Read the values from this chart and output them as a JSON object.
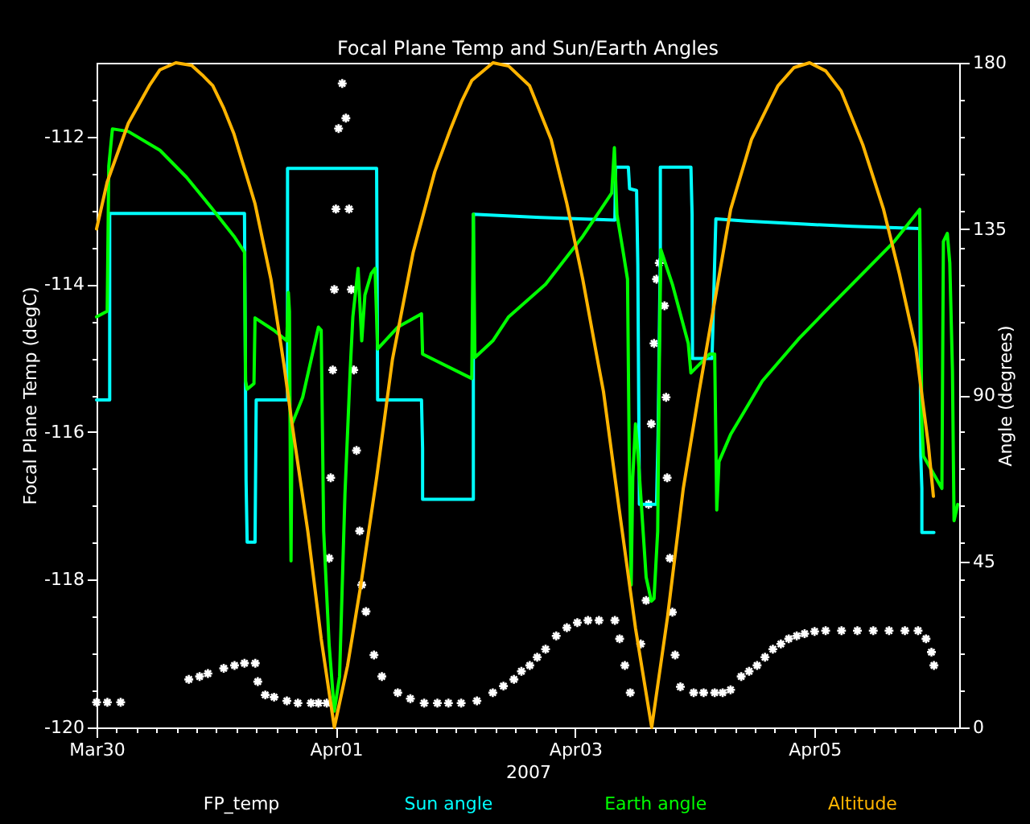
{
  "chart_data": {
    "type": "line",
    "title": "Focal Plane Temp and Sun/Earth Angles",
    "xlabel": "2007",
    "ylabel": "Focal Plane Temp (degC)",
    "y2label": "Angle (degrees)",
    "legend": "bottom",
    "xlim": [
      "2007-03-30T00:00",
      "2007-04-06T05:00"
    ],
    "xticks": [
      {
        "value": "2007-03-30",
        "label": "Mar30"
      },
      {
        "value": "2007-03-30T04:00",
        "label": null
      },
      {
        "value": "2007-03-30T08:00",
        "label": null
      },
      {
        "value": "2007-03-30T12:00",
        "label": null
      },
      {
        "value": "2007-03-30T16:00",
        "label": null
      },
      {
        "value": "2007-03-30T20:00",
        "label": null
      },
      {
        "value": "2007-03-31T00:00",
        "label": null
      },
      {
        "value": "2007-03-31T04:00",
        "label": null
      },
      {
        "value": "2007-03-31T08:00",
        "label": null
      },
      {
        "value": "2007-03-31T12:00",
        "label": null
      },
      {
        "value": "2007-03-31T16:00",
        "label": null
      },
      {
        "value": "2007-03-31T20:00",
        "label": null
      },
      {
        "value": "2007-04-01",
        "label": "Apr01"
      },
      {
        "value": "2007-04-01T04:00",
        "label": null
      },
      {
        "value": "2007-04-01T08:00",
        "label": null
      },
      {
        "value": "2007-04-01T12:00",
        "label": null
      },
      {
        "value": "2007-04-01T16:00",
        "label": null
      },
      {
        "value": "2007-04-01T20:00",
        "label": null
      },
      {
        "value": "2007-04-02T00:00",
        "label": null
      },
      {
        "value": "2007-04-02T04:00",
        "label": null
      },
      {
        "value": "2007-04-02T08:00",
        "label": null
      },
      {
        "value": "2007-04-02T12:00",
        "label": null
      },
      {
        "value": "2007-04-02T16:00",
        "label": null
      },
      {
        "value": "2007-04-02T20:00",
        "label": null
      },
      {
        "value": "2007-04-03",
        "label": "Apr03"
      },
      {
        "value": "2007-04-03T04:00",
        "label": null
      },
      {
        "value": "2007-04-03T08:00",
        "label": null
      },
      {
        "value": "2007-04-03T12:00",
        "label": null
      },
      {
        "value": "2007-04-03T16:00",
        "label": null
      },
      {
        "value": "2007-04-03T20:00",
        "label": null
      },
      {
        "value": "2007-04-04T00:00",
        "label": null
      },
      {
        "value": "2007-04-04T04:00",
        "label": null
      },
      {
        "value": "2007-04-04T08:00",
        "label": null
      },
      {
        "value": "2007-04-04T12:00",
        "label": null
      },
      {
        "value": "2007-04-04T16:00",
        "label": null
      },
      {
        "value": "2007-04-04T20:00",
        "label": null
      },
      {
        "value": "2007-04-05",
        "label": "Apr05"
      },
      {
        "value": "2007-04-05T04:00",
        "label": null
      },
      {
        "value": "2007-04-05T08:00",
        "label": null
      },
      {
        "value": "2007-04-05T12:00",
        "label": null
      },
      {
        "value": "2007-04-05T16:00",
        "label": null
      },
      {
        "value": "2007-04-05T20:00",
        "label": null
      },
      {
        "value": "2007-04-06T00:00",
        "label": null
      },
      {
        "value": "2007-04-06T04:00",
        "label": null
      }
    ],
    "ylim": [
      -120,
      -111
    ],
    "yticks": [
      -120,
      {
        "value": -119.5,
        "label": null
      },
      {
        "value": -119,
        "label": null
      },
      {
        "value": -118.5,
        "label": null
      },
      -118,
      {
        "value": -117.5,
        "label": null
      },
      {
        "value": -117,
        "label": null
      },
      {
        "value": -116.5,
        "label": null
      },
      -116,
      {
        "value": -115.5,
        "label": null
      },
      {
        "value": -115,
        "label": null
      },
      {
        "value": -114.5,
        "label": null
      },
      -114,
      {
        "value": -113.5,
        "label": null
      },
      {
        "value": -113,
        "label": null
      },
      {
        "value": -112.5,
        "label": null
      },
      -112,
      {
        "value": -111.5,
        "label": null
      }
    ],
    "y2lim": [
      0,
      180
    ],
    "y2ticks": [
      0,
      {
        "value": 10,
        "label": null
      },
      {
        "value": 20,
        "label": null
      },
      {
        "value": 30,
        "label": null
      },
      {
        "value": 40,
        "label": null
      },
      45,
      {
        "value": 50,
        "label": null
      },
      {
        "value": 60,
        "label": null
      },
      {
        "value": 70,
        "label": null
      },
      {
        "value": 80,
        "label": null
      },
      90,
      {
        "value": 100,
        "label": null
      },
      {
        "value": 110,
        "label": null
      },
      {
        "value": 120,
        "label": null
      },
      {
        "value": 130,
        "label": null
      },
      135,
      {
        "value": 140,
        "label": null
      },
      {
        "value": 150,
        "label": null
      },
      {
        "value": 160,
        "label": null
      },
      {
        "value": 170,
        "label": null
      },
      180
    ],
    "series": [
      {
        "name": "FP_temp",
        "type": "scatter",
        "marker": "cross",
        "color": "#ffffff",
        "x": [
          "2007-03-30T00:00",
          "2007-03-30T02:10",
          "2007-03-30T04:50",
          "2007-03-30T18:30",
          "2007-03-30T20:40",
          "2007-03-30T22:20",
          "2007-03-31T01:30",
          "2007-03-31T03:40",
          "2007-03-31T05:40",
          "2007-03-31T07:50",
          "2007-03-31T08:20",
          "2007-03-31T09:50",
          "2007-03-31T11:36",
          "2007-03-31T14:10",
          "2007-03-31T16:23",
          "2007-03-31T19:00",
          "2007-03-31T20:30",
          "2007-03-31T22:10",
          "2007-03-31T22:38",
          "2007-03-31T22:57",
          "2007-03-31T23:22",
          "2007-03-31T23:41",
          "2007-04-01T00:00",
          "2007-04-01T00:32",
          "2007-04-01T01:16",
          "2007-04-01T02:00",
          "2007-04-01T02:38",
          "2007-04-01T03:05",
          "2007-04-01T03:35",
          "2007-04-01T04:08",
          "2007-04-01T04:46",
          "2007-04-01T05:11",
          "2007-04-01T06:02",
          "2007-04-01T07:38",
          "2007-04-01T09:13",
          "2007-04-01T12:24",
          "2007-04-01T14:56",
          "2007-04-01T17:42",
          "2007-04-01T20:21",
          "2007-04-01T22:34",
          "2007-04-02T01:07",
          "2007-04-02T04:17",
          "2007-04-02T07:28",
          "2007-04-02T09:36",
          "2007-04-02T11:42",
          "2007-04-02T13:12",
          "2007-04-02T14:53",
          "2007-04-02T16:22",
          "2007-04-02T18:03",
          "2007-04-02T20:11",
          "2007-04-02T22:19",
          "2007-04-03T00:25",
          "2007-04-03T02:33",
          "2007-04-03T04:46",
          "2007-04-03T07:57",
          "2007-04-03T08:54",
          "2007-04-03T09:57",
          "2007-04-03T11:02",
          "2007-04-03T13:08",
          "2007-04-03T14:13",
          "2007-04-03T14:43",
          "2007-04-03T15:15",
          "2007-04-03T15:48",
          "2007-04-03T16:18",
          "2007-04-03T16:51",
          "2007-04-03T17:54",
          "2007-04-03T18:13",
          "2007-04-03T18:26",
          "2007-04-03T18:59",
          "2007-04-03T19:29",
          "2007-04-03T20:02",
          "2007-04-03T21:05",
          "2007-04-03T23:45",
          "2007-04-04T01:45",
          "2007-04-04T03:58",
          "2007-04-04T05:34",
          "2007-04-04T07:09",
          "2007-04-04T09:17",
          "2007-04-04T10:52",
          "2007-04-04T12:28",
          "2007-04-04T14:03",
          "2007-04-04T15:38",
          "2007-04-04T17:14",
          "2007-04-04T18:49",
          "2007-04-04T20:25",
          "2007-04-04T22:00",
          "2007-04-05T00:00",
          "2007-04-05T02:13",
          "2007-04-05T05:24",
          "2007-04-05T08:35",
          "2007-04-05T11:46",
          "2007-04-05T14:56",
          "2007-04-05T18:07",
          "2007-04-05T20:45",
          "2007-04-05T22:21",
          "2007-04-05T23:26",
          "2007-04-05T23:56"
        ],
        "values": [
          -119.66,
          -119.66,
          -119.66,
          -119.35,
          -119.31,
          -119.27,
          -119.2,
          -119.16,
          -119.13,
          -119.13,
          -119.38,
          -119.56,
          -119.59,
          -119.64,
          -119.67,
          -119.67,
          -119.67,
          -119.67,
          -117.71,
          -116.62,
          -115.16,
          -114.07,
          -112.98,
          -111.89,
          -111.28,
          -111.75,
          -112.98,
          -114.07,
          -115.16,
          -116.25,
          -117.34,
          -118.07,
          -118.43,
          -119.02,
          -119.31,
          -119.53,
          -119.61,
          -119.67,
          -119.67,
          -119.67,
          -119.67,
          -119.64,
          -119.53,
          -119.44,
          -119.35,
          -119.24,
          -119.16,
          -119.05,
          -118.94,
          -118.76,
          -118.65,
          -118.58,
          -118.55,
          -118.55,
          -118.55,
          -118.8,
          -119.16,
          -119.53,
          -118.87,
          -118.28,
          -116.98,
          -115.89,
          -114.8,
          -113.93,
          -113.71,
          -114.29,
          -115.53,
          -116.62,
          -117.71,
          -118.44,
          -119.02,
          -119.45,
          -119.53,
          -119.53,
          -119.53,
          -119.53,
          -119.49,
          -119.31,
          -119.24,
          -119.16,
          -119.05,
          -118.94,
          -118.87,
          -118.8,
          -118.76,
          -118.73,
          -118.7,
          -118.69,
          -118.69,
          -118.69,
          -118.69,
          -118.69,
          -118.69,
          -118.69,
          -118.8,
          -118.98,
          -119.16
        ]
      },
      {
        "name": "Sun angle",
        "axis": "y2",
        "color": "#00ffff",
        "x": [
          "2007-03-30T00:00",
          "2007-03-30T02:38",
          "2007-03-30T02:38",
          "2007-03-31T05:40",
          "2007-03-31T05:59",
          "2007-03-31T06:12",
          "2007-03-31T07:47",
          "2007-03-31T08:01",
          "2007-03-31T14:18",
          "2007-03-31T14:18",
          "2007-04-01T08:10",
          "2007-04-01T08:22",
          "2007-04-01T17:10",
          "2007-04-01T17:23",
          "2007-04-01T17:23",
          "2007-04-02T03:34",
          "2007-04-02T03:34",
          "2007-04-02T17:00",
          "2007-04-03T07:57",
          "2007-04-03T08:06",
          "2007-04-03T10:39",
          "2007-04-03T10:54",
          "2007-04-03T12:18",
          "2007-04-03T12:33",
          "2007-04-03T12:52",
          "2007-04-03T16:18",
          "2007-04-03T16:37",
          "2007-04-03T17:04",
          "2007-04-03T17:04",
          "2007-04-03T23:12",
          "2007-04-03T23:26",
          "2007-04-03T23:31",
          "2007-04-04T03:26",
          "2007-04-04T03:45",
          "2007-04-04T04:12",
          "2007-04-04T10:20",
          "2007-04-04T22:00",
          "2007-04-05T07:32",
          "2007-04-05T21:05",
          "2007-04-05T21:18",
          "2007-04-05T21:31",
          "2007-04-05T21:31",
          "2007-04-05T23:56"
        ],
        "values": [
          88.7,
          88.7,
          139.2,
          139.2,
          66.9,
          50.2,
          50.2,
          88.7,
          88.7,
          151.4,
          151.4,
          88.7,
          88.7,
          75.6,
          61.8,
          61.8,
          139.0,
          138.1,
          137.4,
          151.7,
          151.7,
          145.9,
          145.4,
          125.1,
          60.4,
          60.4,
          79.3,
          128.7,
          151.7,
          151.7,
          138.9,
          99.9,
          99.9,
          115.6,
          137.7,
          137.1,
          136.3,
          135.7,
          135.1,
          73.5,
          64.7,
          52.8,
          52.8
        ]
      },
      {
        "name": "Earth angle",
        "axis": "y2",
        "color": "#00ff00",
        "x": [
          "2007-03-30T00:00",
          "2007-03-30T02:08",
          "2007-03-30T02:27",
          "2007-03-30T03:11",
          "2007-03-30T06:22",
          "2007-03-30T12:43",
          "2007-03-30T18:02",
          "2007-03-30T23:18",
          "2007-03-31T03:34",
          "2007-03-31T05:40",
          "2007-03-31T05:53",
          "2007-03-31T06:12",
          "2007-03-31T07:34",
          "2007-03-31T07:47",
          "2007-03-31T11:31",
          "2007-03-31T14:09",
          "2007-03-31T14:28",
          "2007-03-31T14:41",
          "2007-03-31T14:53",
          "2007-03-31T15:00",
          "2007-03-31T15:12",
          "2007-03-31T17:20",
          "2007-03-31T20:30",
          "2007-03-31T21:03",
          "2007-03-31T21:33",
          "2007-03-31T22:38",
          "2007-03-31T23:41",
          "2007-04-01T00:44",
          "2007-04-01T01:49",
          "2007-04-01T02:52",
          "2007-04-01T03:24",
          "2007-04-01T04:27",
          "2007-04-01T05:11",
          "2007-04-01T05:49",
          "2007-04-01T07:05",
          "2007-04-01T07:51",
          "2007-04-01T08:22",
          "2007-04-01T12:24",
          "2007-04-01T17:10",
          "2007-04-01T17:23",
          "2007-04-02T03:15",
          "2007-04-02T03:34",
          "2007-04-02T03:53",
          "2007-04-02T07:28",
          "2007-04-02T10:39",
          "2007-04-02T18:03",
          "2007-04-03T01:30",
          "2007-04-03T07:19",
          "2007-04-03T07:51",
          "2007-04-03T08:22",
          "2007-04-03T09:32",
          "2007-04-03T10:29",
          "2007-04-03T10:49",
          "2007-04-03T11:13",
          "2007-04-03T11:32",
          "2007-04-03T12:05",
          "2007-04-03T12:37",
          "2007-04-03T14:13",
          "2007-04-03T15:16",
          "2007-04-03T15:48",
          "2007-04-03T16:32",
          "2007-04-03T16:51",
          "2007-04-03T17:10",
          "2007-04-03T19:29",
          "2007-04-03T22:40",
          "2007-04-03T23:12",
          "2007-04-04T02:55",
          "2007-04-04T03:58",
          "2007-04-04T04:23",
          "2007-04-04T04:50",
          "2007-04-04T07:09",
          "2007-04-04T13:31",
          "2007-04-04T20:55",
          "2007-04-05T03:16",
          "2007-04-05T09:38",
          "2007-04-05T15:59",
          "2007-04-05T21:05",
          "2007-04-05T21:31",
          "2007-04-05T21:50",
          "2007-04-06T01:32",
          "2007-04-06T01:50",
          "2007-04-06T02:37",
          "2007-04-06T03:07",
          "2007-04-06T03:39",
          "2007-04-06T03:58",
          "2007-04-06T04:42"
        ],
        "values": [
          111.2,
          112.7,
          152.0,
          162.1,
          161.4,
          156.3,
          149.0,
          140.3,
          133.0,
          128.7,
          93.8,
          91.6,
          93.1,
          110.9,
          107.6,
          104.7,
          117.8,
          112.7,
          64.7,
          45.1,
          82.2,
          89.4,
          108.4,
          107.6,
          53.1,
          22.6,
          4.4,
          13.8,
          63.2,
          96.7,
          111.2,
          124.3,
          104.7,
          117.1,
          122.9,
          124.3,
          102.5,
          108.4,
          112.0,
          101.1,
          94.5,
          139.0,
          100.2,
          104.7,
          111.2,
          120.0,
          133.0,
          144.7,
          157.0,
          138.9,
          129.4,
          121.4,
          75.6,
          38.6,
          67.6,
          82.2,
          73.5,
          40.7,
          34.2,
          34.9,
          53.1,
          96.7,
          129.4,
          120.0,
          104.0,
          96.0,
          101.1,
          101.1,
          58.9,
          72.0,
          79.3,
          93.8,
          105.4,
          114.2,
          122.9,
          131.6,
          140.3,
          82.2,
          73.5,
          64.7,
          131.6,
          133.8,
          125.8,
          96.7,
          56.0,
          60.4
        ]
      },
      {
        "name": "Altitude",
        "axis": "y2",
        "color": "#ffb400",
        "x": [
          "2007-03-30T00:00",
          "2007-03-30T02:08",
          "2007-03-30T06:22",
          "2007-03-30T10:35",
          "2007-03-30T12:43",
          "2007-03-30T15:54",
          "2007-03-30T19:04",
          "2007-03-30T21:12",
          "2007-03-30T23:18",
          "2007-03-31T01:26",
          "2007-03-31T03:34",
          "2007-03-31T07:47",
          "2007-03-31T10:58",
          "2007-03-31T13:36",
          "2007-03-31T15:12",
          "2007-03-31T18:22",
          "2007-03-31T21:03",
          "2007-03-31T23:41",
          "2007-04-01T02:20",
          "2007-04-01T05:00",
          "2007-04-01T08:10",
          "2007-04-01T11:20",
          "2007-04-01T15:30",
          "2007-04-01T19:50",
          "2007-04-01T23:00",
          "2007-04-02T01:10",
          "2007-04-02T03:15",
          "2007-04-02T07:30",
          "2007-04-02T10:39",
          "2007-04-02T14:50",
          "2007-04-02T19:10",
          "2007-04-02T22:20",
          "2007-04-03T01:30",
          "2007-04-03T04:40",
          "2007-04-03T05:40",
          "2007-04-03T08:50",
          "2007-04-03T12:05",
          "2007-04-03T15:20",
          "2007-04-03T18:30",
          "2007-04-03T21:40",
          "2007-04-04T00:50",
          "2007-04-04T04:00",
          "2007-04-04T07:10",
          "2007-04-04T11:20",
          "2007-04-04T16:40",
          "2007-04-04T19:52",
          "2007-04-04T23:00",
          "2007-04-05T02:14",
          "2007-04-05T05:20",
          "2007-04-05T09:40",
          "2007-04-05T13:50",
          "2007-04-05T17:00",
          "2007-04-05T20:20",
          "2007-04-05T22:50",
          "2007-04-05T23:50"
        ],
        "values": [
          135.0,
          147.7,
          163.6,
          173.8,
          178.1,
          180,
          179.3,
          176.7,
          173.8,
          167.9,
          160.7,
          141.8,
          121.4,
          98.1,
          82.2,
          53.1,
          24.0,
          0,
          16.7,
          38.6,
          67.6,
          99.6,
          128.7,
          150.5,
          162.1,
          169.4,
          175.2,
          180,
          179.1,
          173.8,
          159.2,
          141.8,
          121.4,
          98.1,
          90.9,
          58.9,
          26.9,
          0,
          29.8,
          64.7,
          90.9,
          115.6,
          140.3,
          159.2,
          173.8,
          178.7,
          180,
          177.8,
          172.3,
          157.8,
          140.3,
          122.9,
          102.5,
          76.3,
          62.6
        ]
      }
    ]
  }
}
